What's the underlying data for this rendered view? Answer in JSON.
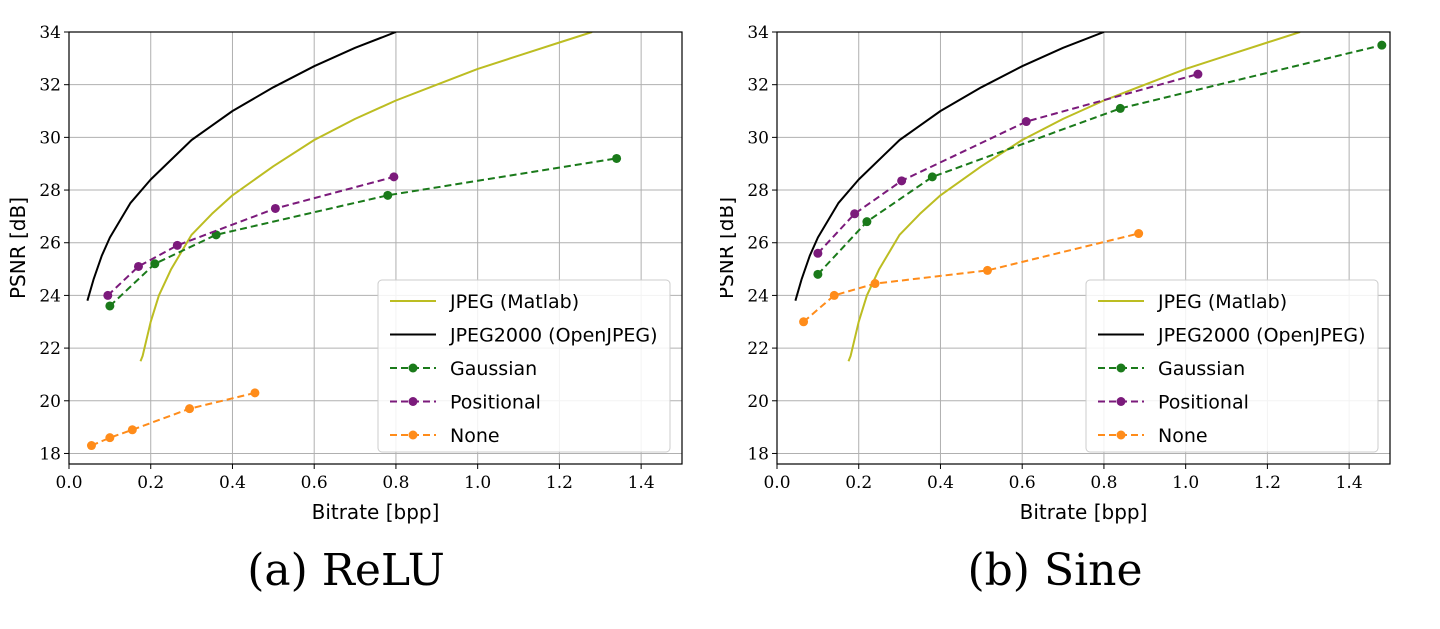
{
  "chart_data": [
    {
      "type": "line",
      "caption": "(a) ReLU",
      "xlabel": "Bitrate [bpp]",
      "ylabel": "PSNR [dB]",
      "xlim": [
        0.0,
        1.5
      ],
      "ylim": [
        17.6,
        34.0
      ],
      "xticks": [
        0.0,
        0.2,
        0.4,
        0.6,
        0.8,
        1.0,
        1.2,
        1.4
      ],
      "xtick_labels": [
        "0.0",
        "0.2",
        "0.4",
        "0.6",
        "0.8",
        "1.0",
        "1.2",
        "1.4"
      ],
      "yticks": [
        18,
        20,
        22,
        24,
        26,
        28,
        30,
        32,
        34
      ],
      "ytick_labels": [
        "18",
        "20",
        "22",
        "24",
        "26",
        "28",
        "30",
        "32",
        "34"
      ],
      "grid": true,
      "legend_position": "lower-right",
      "series": [
        {
          "name": "JPEG (Matlab)",
          "color": "#bcbd22",
          "style": "solid",
          "marker": false,
          "x": [
            0.175,
            0.18,
            0.2,
            0.22,
            0.25,
            0.3,
            0.35,
            0.4,
            0.5,
            0.6,
            0.7,
            0.8,
            0.9,
            1.0,
            1.1,
            1.2,
            1.28
          ],
          "y": [
            21.5,
            21.7,
            23.0,
            24.0,
            25.0,
            26.3,
            27.1,
            27.8,
            28.9,
            29.9,
            30.7,
            31.4,
            32.0,
            32.6,
            33.1,
            33.6,
            34.0
          ]
        },
        {
          "name": "JPEG2000 (OpenJPEG)",
          "color": "#000000",
          "style": "solid",
          "marker": false,
          "x": [
            0.045,
            0.06,
            0.08,
            0.1,
            0.15,
            0.2,
            0.3,
            0.4,
            0.5,
            0.6,
            0.7,
            0.8
          ],
          "y": [
            23.8,
            24.6,
            25.5,
            26.2,
            27.5,
            28.4,
            29.9,
            31.0,
            31.9,
            32.7,
            33.4,
            34.0
          ]
        },
        {
          "name": "Gaussian",
          "color": "#1a7a1a",
          "style": "dashed",
          "marker": true,
          "x": [
            0.1,
            0.21,
            0.36,
            0.78,
            1.34
          ],
          "y": [
            23.6,
            25.2,
            26.3,
            27.8,
            29.2
          ]
        },
        {
          "name": "Positional",
          "color": "#7b1a7b",
          "style": "dashed",
          "marker": true,
          "x": [
            0.095,
            0.17,
            0.265,
            0.505,
            0.795
          ],
          "y": [
            24.0,
            25.1,
            25.9,
            27.3,
            28.5
          ]
        },
        {
          "name": "None",
          "color": "#ff8c1a",
          "style": "dashed",
          "marker": true,
          "x": [
            0.055,
            0.1,
            0.155,
            0.295,
            0.455
          ],
          "y": [
            18.3,
            18.6,
            18.9,
            19.7,
            20.3
          ]
        }
      ]
    },
    {
      "type": "line",
      "caption": "(b) Sine",
      "xlabel": "Bitrate [bpp]",
      "ylabel": "PSNR [dB]",
      "xlim": [
        0.0,
        1.5
      ],
      "ylim": [
        17.6,
        34.0
      ],
      "xticks": [
        0.0,
        0.2,
        0.4,
        0.6,
        0.8,
        1.0,
        1.2,
        1.4
      ],
      "xtick_labels": [
        "0.0",
        "0.2",
        "0.4",
        "0.6",
        "0.8",
        "1.0",
        "1.2",
        "1.4"
      ],
      "yticks": [
        18,
        20,
        22,
        24,
        26,
        28,
        30,
        32,
        34
      ],
      "ytick_labels": [
        "18",
        "20",
        "22",
        "24",
        "26",
        "28",
        "30",
        "32",
        "34"
      ],
      "grid": true,
      "legend_position": "lower-right",
      "series": [
        {
          "name": "JPEG (Matlab)",
          "color": "#bcbd22",
          "style": "solid",
          "marker": false,
          "x": [
            0.175,
            0.18,
            0.2,
            0.22,
            0.25,
            0.3,
            0.35,
            0.4,
            0.5,
            0.6,
            0.7,
            0.8,
            0.9,
            1.0,
            1.1,
            1.2,
            1.28
          ],
          "y": [
            21.5,
            21.7,
            23.0,
            24.0,
            25.0,
            26.3,
            27.1,
            27.8,
            28.9,
            29.9,
            30.7,
            31.4,
            32.0,
            32.6,
            33.1,
            33.6,
            34.0
          ]
        },
        {
          "name": "JPEG2000 (OpenJPEG)",
          "color": "#000000",
          "style": "solid",
          "marker": false,
          "x": [
            0.045,
            0.06,
            0.08,
            0.1,
            0.15,
            0.2,
            0.3,
            0.4,
            0.5,
            0.6,
            0.7,
            0.8
          ],
          "y": [
            23.8,
            24.6,
            25.5,
            26.2,
            27.5,
            28.4,
            29.9,
            31.0,
            31.9,
            32.7,
            33.4,
            34.0
          ]
        },
        {
          "name": "Gaussian",
          "color": "#1a7a1a",
          "style": "dashed",
          "marker": true,
          "x": [
            0.1,
            0.22,
            0.38,
            0.84,
            1.48
          ],
          "y": [
            24.8,
            26.8,
            28.5,
            31.1,
            33.5
          ]
        },
        {
          "name": "Positional",
          "color": "#7b1a7b",
          "style": "dashed",
          "marker": true,
          "x": [
            0.1,
            0.19,
            0.305,
            0.61,
            1.03
          ],
          "y": [
            25.6,
            27.1,
            28.35,
            30.6,
            32.4
          ]
        },
        {
          "name": "None",
          "color": "#ff8c1a",
          "style": "dashed",
          "marker": true,
          "x": [
            0.065,
            0.14,
            0.24,
            0.515,
            0.885
          ],
          "y": [
            23.0,
            24.0,
            24.45,
            24.95,
            26.35
          ]
        }
      ]
    }
  ]
}
